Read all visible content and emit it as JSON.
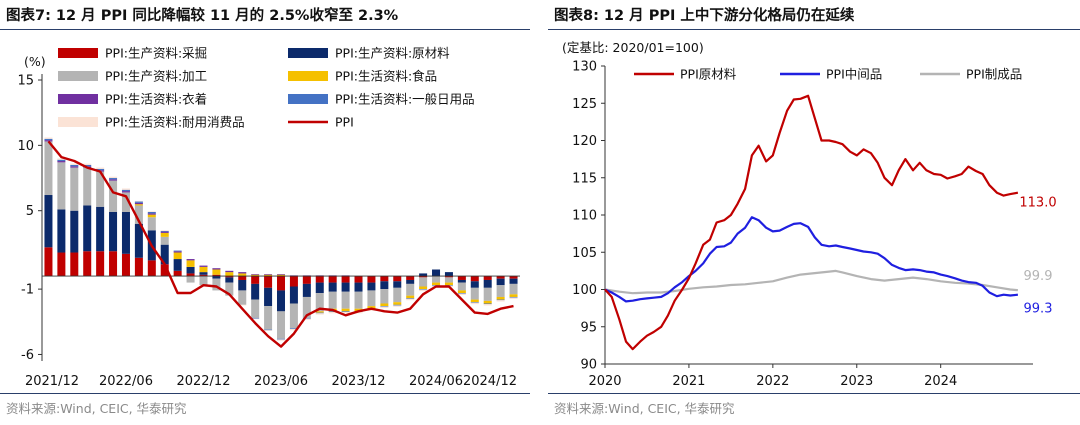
{
  "left_panel": {
    "title": "图表7:   12 月 PPI 同比降幅较 11 月的 2.5%收窄至 2.3%",
    "source": "资料来源:Wind, CEIC, 华泰研究"
  },
  "right_panel": {
    "title": "图表8:   12 月 PPI 上中下游分化格局仍在延续",
    "source": "资料来源:Wind, CEIC, 华泰研究"
  },
  "chart_data": [
    {
      "type": "bar",
      "stacked": true,
      "unit_label": "(%)",
      "yticks": [
        "15",
        "10",
        "5",
        "-1",
        "-6"
      ],
      "ylim": [
        -6.5,
        15
      ],
      "xtick_labels": [
        "2021/12",
        "2022/06",
        "2022/12",
        "2023/06",
        "2023/12",
        "2024/06",
        "2024/12"
      ],
      "categories": [
        "2021/12",
        "2022/01",
        "2022/02",
        "2022/03",
        "2022/04",
        "2022/05",
        "2022/06",
        "2022/07",
        "2022/08",
        "2022/09",
        "2022/10",
        "2022/11",
        "2022/12",
        "2023/01",
        "2023/02",
        "2023/03",
        "2023/04",
        "2023/05",
        "2023/06",
        "2023/07",
        "2023/08",
        "2023/09",
        "2023/10",
        "2023/11",
        "2023/12",
        "2024/01",
        "2024/02",
        "2024/03",
        "2024/04",
        "2024/05",
        "2024/06",
        "2024/07",
        "2024/08",
        "2024/09",
        "2024/10",
        "2024/11",
        "2024/12"
      ],
      "legend_position": "top",
      "series": [
        {
          "name": "PPI:生产资料:采掘",
          "color": "#c00000",
          "kind": "bar",
          "values": [
            2.2,
            1.8,
            1.8,
            1.9,
            1.9,
            1.9,
            1.7,
            1.4,
            1.2,
            0.9,
            0.4,
            0.2,
            0.1,
            0.1,
            -0.1,
            -0.3,
            -0.6,
            -0.9,
            -1.1,
            -0.8,
            -0.6,
            -0.5,
            -0.5,
            -0.5,
            -0.5,
            -0.5,
            -0.4,
            -0.4,
            -0.3,
            -0.1,
            0.0,
            -0.1,
            -0.3,
            -0.4,
            -0.3,
            -0.2,
            -0.2
          ]
        },
        {
          "name": "PPI:生产资料:原材料",
          "color": "#0c2a6b",
          "kind": "bar",
          "values": [
            4.0,
            3.3,
            3.2,
            3.5,
            3.4,
            3.0,
            3.2,
            2.6,
            2.3,
            1.5,
            0.9,
            0.5,
            0.2,
            -0.2,
            -0.4,
            -0.8,
            -1.2,
            -1.4,
            -1.6,
            -1.3,
            -1.0,
            -0.8,
            -0.7,
            -0.7,
            -0.7,
            -0.6,
            -0.6,
            -0.5,
            -0.3,
            0.2,
            0.5,
            0.3,
            -0.2,
            -0.5,
            -0.6,
            -0.5,
            -0.4
          ]
        },
        {
          "name": "PPI:生产资料:加工",
          "color": "#b4b4b4",
          "kind": "bar",
          "values": [
            4.1,
            3.6,
            3.3,
            2.9,
            2.7,
            2.4,
            1.5,
            1.4,
            1.0,
            0.6,
            0.0,
            -0.5,
            -0.7,
            -0.9,
            -1.0,
            -1.1,
            -1.4,
            -1.8,
            -2.1,
            -1.9,
            -1.6,
            -1.4,
            -1.3,
            -1.3,
            -1.3,
            -1.2,
            -1.1,
            -1.1,
            -0.9,
            -0.7,
            -0.5,
            -0.4,
            -0.6,
            -0.9,
            -1.0,
            -0.9,
            -0.8
          ]
        },
        {
          "name": "PPI:生活资料:食品",
          "color": "#f5c000",
          "kind": "bar",
          "values": [
            0.0,
            0.0,
            0.0,
            0.0,
            0.0,
            0.0,
            0.0,
            0.1,
            0.2,
            0.3,
            0.5,
            0.5,
            0.4,
            0.4,
            0.3,
            0.2,
            0.1,
            0.1,
            0.1,
            0.0,
            0.0,
            -0.1,
            -0.2,
            -0.2,
            -0.2,
            -0.2,
            -0.2,
            -0.2,
            -0.2,
            -0.2,
            -0.2,
            -0.2,
            -0.2,
            -0.2,
            -0.2,
            -0.2,
            -0.2
          ]
        },
        {
          "name": "PPI:生活资料:衣着",
          "color": "#7030a0",
          "kind": "bar",
          "values": [
            0.1,
            0.1,
            0.1,
            0.1,
            0.1,
            0.1,
            0.1,
            0.1,
            0.1,
            0.1,
            0.1,
            0.1,
            0.1,
            0.1,
            0.1,
            0.1,
            0.05,
            0.05,
            0.05,
            0.05,
            0.05,
            0.05,
            0.05,
            0.05,
            0.0,
            0.0,
            0.0,
            0.0,
            0.0,
            0.0,
            0.0,
            0.0,
            0.0,
            0.0,
            0.0,
            0.0,
            0.0
          ]
        },
        {
          "name": "PPI:生活资料:一般日用品",
          "color": "#4472c4",
          "kind": "bar",
          "values": [
            0.1,
            0.1,
            0.1,
            0.1,
            0.1,
            0.1,
            0.1,
            0.1,
            0.1,
            0.05,
            0.05,
            0.0,
            0.0,
            0.0,
            0.0,
            0.0,
            -0.05,
            -0.05,
            -0.05,
            -0.05,
            -0.05,
            -0.05,
            -0.05,
            -0.05,
            -0.05,
            -0.05,
            -0.05,
            -0.05,
            -0.05,
            -0.05,
            -0.05,
            -0.05,
            -0.05,
            -0.05,
            -0.05,
            -0.05,
            -0.05
          ]
        },
        {
          "name": "PPI:生活资料:耐用消费品",
          "color": "#fbe3d6",
          "kind": "bar",
          "values": [
            0.1,
            0.1,
            0.1,
            0.1,
            0.1,
            0.1,
            0.1,
            0.05,
            0.05,
            0.05,
            0.0,
            0.0,
            0.0,
            0.0,
            0.0,
            -0.05,
            -0.05,
            -0.05,
            -0.1,
            -0.1,
            -0.1,
            -0.1,
            -0.1,
            -0.1,
            -0.1,
            -0.1,
            -0.1,
            -0.1,
            -0.1,
            -0.1,
            -0.1,
            -0.1,
            -0.1,
            -0.1,
            -0.1,
            -0.1,
            -0.1
          ]
        },
        {
          "name": "PPI",
          "color": "#c00000",
          "kind": "line",
          "values": [
            10.3,
            9.1,
            8.8,
            8.3,
            8.0,
            6.4,
            6.1,
            4.2,
            2.3,
            0.9,
            -1.3,
            -1.3,
            -0.7,
            -0.8,
            -1.4,
            -2.5,
            -3.6,
            -4.6,
            -5.4,
            -4.4,
            -3.0,
            -2.5,
            -2.6,
            -3.0,
            -2.7,
            -2.5,
            -2.7,
            -2.8,
            -2.5,
            -1.4,
            -0.8,
            -0.8,
            -1.8,
            -2.8,
            -2.9,
            -2.5,
            -2.3
          ]
        }
      ]
    },
    {
      "type": "line",
      "unit_label": "(定基比: 2020/01=100)",
      "yticks": [
        "130",
        "125",
        "120",
        "115",
        "110",
        "105",
        "100",
        "95",
        "90"
      ],
      "ylim": [
        90,
        130
      ],
      "xtick_labels": [
        "2020",
        "2021",
        "2022",
        "2023",
        "2024"
      ],
      "x_range": [
        2020,
        2025.1
      ],
      "legend_position": "top",
      "series": [
        {
          "name": "PPI原材料",
          "color": "#c00000",
          "end_label": "113.0",
          "x": [
            2020.0,
            2020.08,
            2020.17,
            2020.25,
            2020.33,
            2020.42,
            2020.5,
            2020.58,
            2020.67,
            2020.75,
            2020.83,
            2020.92,
            2021.0,
            2021.08,
            2021.17,
            2021.25,
            2021.33,
            2021.42,
            2021.5,
            2021.58,
            2021.67,
            2021.75,
            2021.83,
            2021.92,
            2022.0,
            2022.08,
            2022.17,
            2022.25,
            2022.33,
            2022.42,
            2022.5,
            2022.58,
            2022.67,
            2022.75,
            2022.83,
            2022.92,
            2023.0,
            2023.08,
            2023.17,
            2023.25,
            2023.33,
            2023.42,
            2023.5,
            2023.58,
            2023.67,
            2023.75,
            2023.83,
            2023.92,
            2024.0,
            2024.08,
            2024.17,
            2024.25,
            2024.33,
            2024.42,
            2024.5,
            2024.58,
            2024.67,
            2024.75,
            2024.83,
            2024.92
          ],
          "y": [
            100,
            99,
            96,
            93,
            92,
            93,
            93.8,
            94.3,
            95,
            96.5,
            98.5,
            100,
            101.5,
            103.5,
            106,
            106.7,
            109,
            109.3,
            110,
            111.5,
            113.5,
            118,
            119.3,
            117.2,
            118,
            121,
            124,
            125.5,
            125.6,
            126,
            123,
            120,
            120,
            119.8,
            119.5,
            118.5,
            118,
            118.8,
            118.3,
            117,
            115,
            114,
            116,
            117.5,
            116,
            117,
            116,
            115.5,
            115.4,
            114.9,
            115.2,
            115.5,
            116.5,
            115.9,
            115.5,
            114,
            113,
            112.6,
            112.8,
            113
          ]
        },
        {
          "name": "PPI中间品",
          "color": "#1f1fe0",
          "end_label": "99.3",
          "x": [
            2020.0,
            2020.08,
            2020.17,
            2020.25,
            2020.33,
            2020.42,
            2020.5,
            2020.58,
            2020.67,
            2020.75,
            2020.83,
            2020.92,
            2021.0,
            2021.08,
            2021.17,
            2021.25,
            2021.33,
            2021.42,
            2021.5,
            2021.58,
            2021.67,
            2021.75,
            2021.83,
            2021.92,
            2022.0,
            2022.08,
            2022.17,
            2022.25,
            2022.33,
            2022.42,
            2022.5,
            2022.58,
            2022.67,
            2022.75,
            2022.83,
            2022.92,
            2023.0,
            2023.08,
            2023.17,
            2023.25,
            2023.33,
            2023.42,
            2023.5,
            2023.58,
            2023.67,
            2023.75,
            2023.83,
            2023.92,
            2024.0,
            2024.08,
            2024.17,
            2024.25,
            2024.33,
            2024.42,
            2024.5,
            2024.58,
            2024.67,
            2024.75,
            2024.83,
            2024.92
          ],
          "y": [
            100,
            99.6,
            99,
            98.4,
            98.5,
            98.7,
            98.8,
            98.9,
            99,
            99.5,
            100.3,
            101,
            101.8,
            102.5,
            103.5,
            104.8,
            105.7,
            105.8,
            106.3,
            107.5,
            108.3,
            109.7,
            109.3,
            108.3,
            107.8,
            107.9,
            108.4,
            108.8,
            108.9,
            108.4,
            107,
            106,
            105.8,
            105.9,
            105.7,
            105.5,
            105.3,
            105.1,
            105,
            104.8,
            104.2,
            103.3,
            102.9,
            102.6,
            102.7,
            102.6,
            102.4,
            102.3,
            102,
            101.8,
            101.5,
            101.2,
            101,
            100.9,
            100.5,
            99.6,
            99.1,
            99.3,
            99.2,
            99.3
          ]
        },
        {
          "name": "PPI制成品",
          "color": "#b4b4b4",
          "end_label": "99.9",
          "x": [
            2020.0,
            2020.17,
            2020.33,
            2020.5,
            2020.67,
            2020.83,
            2021.0,
            2021.17,
            2021.33,
            2021.5,
            2021.67,
            2021.83,
            2022.0,
            2022.17,
            2022.33,
            2022.5,
            2022.67,
            2022.75,
            2022.83,
            2023.0,
            2023.17,
            2023.33,
            2023.5,
            2023.67,
            2023.83,
            2024.0,
            2024.17,
            2024.33,
            2024.5,
            2024.67,
            2024.83,
            2024.92
          ],
          "y": [
            100,
            99.7,
            99.5,
            99.6,
            99.6,
            99.8,
            100.1,
            100.3,
            100.4,
            100.6,
            100.7,
            100.9,
            101.1,
            101.6,
            102,
            102.2,
            102.4,
            102.5,
            102.3,
            101.8,
            101.4,
            101.2,
            101.4,
            101.6,
            101.4,
            101.1,
            100.9,
            100.8,
            100.6,
            100.3,
            100,
            99.9
          ]
        }
      ]
    }
  ]
}
